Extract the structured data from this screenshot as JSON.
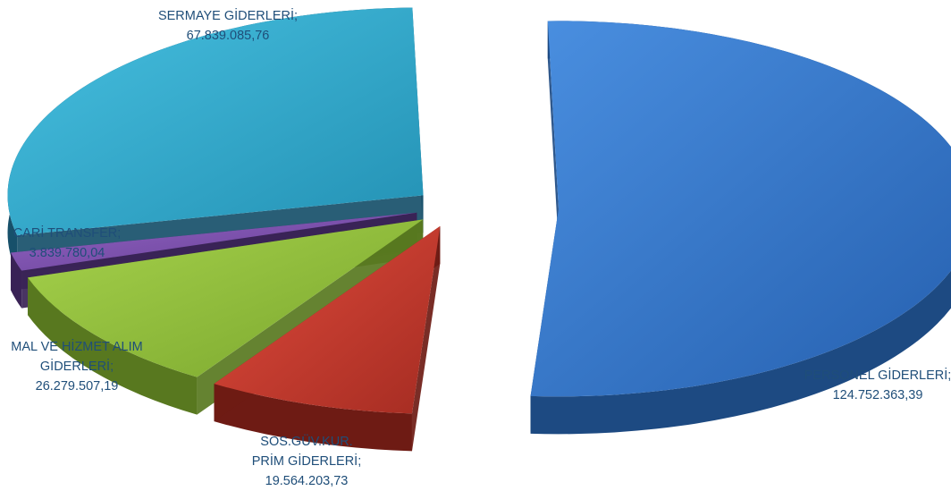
{
  "chart_data": {
    "type": "pie",
    "title": "",
    "style": "3d-exploded",
    "slices": [
      {
        "name": "PERSONEL GİDERLERİ",
        "value": 124752363.39,
        "value_label": "124.752.363,39",
        "label_lines": [
          "PERSONEL GİDERLERİ;",
          "124.752.363,39"
        ],
        "color": "#2e75c9"
      },
      {
        "name": "SOS.GÜV.KUR. PRİM GİDERLERİ",
        "value": 19564203.73,
        "value_label": "19.564.203,73",
        "label_lines": [
          "SOS.GÜV.KUR.",
          "PRİM GİDERLERİ;",
          "19.564.203,73"
        ],
        "color": "#c0392b"
      },
      {
        "name": "MAL VE HİZMET ALIM GİDERLERİ",
        "value": 26279507.19,
        "value_label": "26.279.507,19",
        "label_lines": [
          "MAL VE HİZMET ALIM",
          "GİDERLERİ;",
          "26.279.507,19"
        ],
        "color": "#8fbc3a"
      },
      {
        "name": "CARİ TRANSFER",
        "value": 3839780.04,
        "value_label": "3.839.780,04",
        "label_lines": [
          "CARİ TRANSFER;",
          "3.839.780,04"
        ],
        "color": "#7b4fa8"
      },
      {
        "name": "SERMAYE GİDERLERİ",
        "value": 67839085.76,
        "value_label": "67.839.085,76",
        "label_lines": [
          "SERMAYE GİDERLERİ;",
          "67.839.085,76"
        ],
        "color": "#2ea7c9"
      }
    ]
  }
}
